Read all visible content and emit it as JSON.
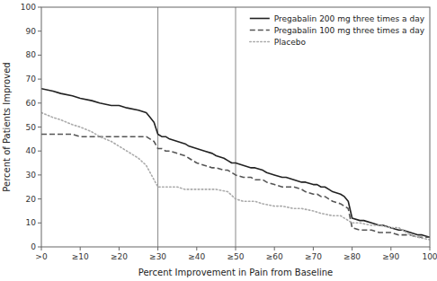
{
  "chart_data": {
    "type": "line",
    "x_label": "Percent Improvement in Pain from Baseline",
    "y_label": "Percent of Patients Improved",
    "xlim": [
      0,
      100
    ],
    "ylim": [
      0,
      100
    ],
    "xticks": [
      {
        "value": 0,
        "label": ">0"
      },
      {
        "value": 10,
        "label": "≥10"
      },
      {
        "value": 20,
        "label": "≥20"
      },
      {
        "value": 30,
        "label": "≥30"
      },
      {
        "value": 40,
        "label": "≥40"
      },
      {
        "value": 50,
        "label": "≥50"
      },
      {
        "value": 60,
        "label": "≥60"
      },
      {
        "value": 70,
        "label": "≥70"
      },
      {
        "value": 80,
        "label": "≥80"
      },
      {
        "value": 90,
        "label": "≥90"
      },
      100
    ],
    "yticks": [
      0,
      10,
      20,
      30,
      40,
      50,
      60,
      70,
      80,
      90,
      100
    ],
    "vlines": [
      30,
      50
    ],
    "grid": false,
    "legend": "upper right",
    "series": [
      {
        "name": "Pregabalin 200 mg three times a day",
        "color": "#222222",
        "line_style": "solid",
        "x": [
          0,
          3,
          5,
          8,
          10,
          13,
          15,
          18,
          20,
          22,
          25,
          27,
          28,
          29,
          30,
          31,
          32,
          33,
          35,
          37,
          38,
          40,
          42,
          44,
          45,
          47,
          48,
          49,
          50,
          52,
          54,
          55,
          57,
          58,
          60,
          62,
          63,
          65,
          67,
          68,
          70,
          71,
          72,
          73,
          74,
          75,
          77,
          78,
          79,
          80,
          82,
          83,
          85,
          87,
          88,
          90,
          92,
          93,
          95,
          97,
          98,
          100
        ],
        "values": [
          66,
          65,
          64,
          63,
          62,
          61,
          60,
          59,
          59,
          58,
          57,
          56,
          54,
          52,
          47,
          46,
          46,
          45,
          44,
          43,
          42,
          41,
          40,
          39,
          38,
          37,
          36,
          35,
          35,
          34,
          33,
          33,
          32,
          31,
          30,
          29,
          29,
          28,
          27,
          27,
          26,
          26,
          25,
          25,
          24,
          23,
          22,
          21,
          19,
          12,
          11,
          11,
          10,
          9,
          9,
          8,
          7,
          7,
          6,
          5,
          5,
          4
        ]
      },
      {
        "name": "Pregabalin 100 mg three times a day",
        "color": "#555555",
        "line_style": "dashed",
        "x": [
          0,
          3,
          5,
          8,
          10,
          13,
          15,
          18,
          20,
          22,
          25,
          27,
          28,
          29,
          30,
          31,
          32,
          33,
          35,
          37,
          38,
          40,
          42,
          44,
          45,
          47,
          48,
          49,
          50,
          52,
          54,
          55,
          57,
          58,
          60,
          62,
          63,
          65,
          67,
          68,
          70,
          71,
          72,
          73,
          74,
          75,
          77,
          78,
          79,
          80,
          82,
          83,
          85,
          87,
          88,
          90,
          92,
          93,
          95,
          97,
          98,
          100
        ],
        "values": [
          47,
          47,
          47,
          47,
          46,
          46,
          46,
          46,
          46,
          46,
          46,
          46,
          45,
          44,
          41,
          41,
          40,
          40,
          39,
          38,
          37,
          35,
          34,
          33,
          33,
          32,
          32,
          31,
          30,
          29,
          29,
          28,
          28,
          27,
          26,
          25,
          25,
          25,
          24,
          23,
          22,
          22,
          21,
          21,
          20,
          19,
          18,
          17,
          16,
          8,
          7,
          7,
          7,
          6,
          6,
          6,
          5,
          5,
          5,
          4,
          4,
          4
        ]
      },
      {
        "name": "Placebo",
        "color": "#aaaaaa",
        "line_style": "dotted",
        "x": [
          0,
          3,
          5,
          8,
          10,
          13,
          15,
          18,
          20,
          22,
          25,
          27,
          28,
          29,
          30,
          32,
          35,
          37,
          40,
          42,
          45,
          48,
          50,
          52,
          55,
          57,
          60,
          62,
          65,
          67,
          70,
          72,
          75,
          77,
          80,
          82,
          85,
          87,
          90,
          92,
          95,
          97,
          100
        ],
        "values": [
          56,
          54,
          53,
          51,
          50,
          48,
          46,
          44,
          42,
          40,
          37,
          34,
          31,
          28,
          25,
          25,
          25,
          24,
          24,
          24,
          24,
          23,
          20,
          19,
          19,
          18,
          17,
          17,
          16,
          16,
          15,
          14,
          13,
          13,
          10,
          10,
          9,
          9,
          8,
          8,
          5,
          4,
          3
        ]
      }
    ]
  }
}
